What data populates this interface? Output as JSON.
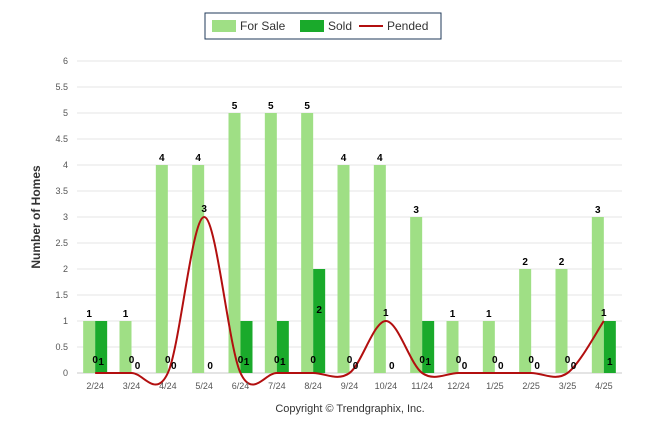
{
  "chart_data": {
    "type": "bar",
    "title": "",
    "xlabel": "",
    "ylabel": "Number of Homes",
    "ylim": [
      0,
      6
    ],
    "yticks": [
      "0",
      "0.5",
      "1",
      "1.5",
      "2",
      "2.5",
      "3",
      "3.5",
      "4",
      "4.5",
      "5",
      "5.5",
      "6"
    ],
    "categories": [
      "2/24",
      "3/24",
      "4/24",
      "5/24",
      "6/24",
      "7/24",
      "8/24",
      "9/24",
      "10/24",
      "11/24",
      "12/24",
      "1/25",
      "2/25",
      "3/25",
      "4/25"
    ],
    "grid": true,
    "legend_position": "top-center",
    "series": [
      {
        "name": "For Sale",
        "kind": "bar",
        "color": "#9fdf85",
        "values": [
          1,
          1,
          4,
          4,
          5,
          5,
          5,
          4,
          4,
          3,
          1,
          1,
          2,
          2,
          3
        ]
      },
      {
        "name": "Sold",
        "kind": "bar",
        "color": "#1aaa2b",
        "values": [
          1,
          0,
          0,
          0,
          1,
          1,
          2,
          0,
          0,
          1,
          0,
          0,
          0,
          0,
          1
        ]
      },
      {
        "name": "Pended",
        "kind": "line",
        "color": "#b20f0f",
        "values": [
          0,
          0,
          0,
          3,
          0,
          0,
          0,
          0,
          1,
          0,
          0,
          0,
          0,
          0,
          1
        ]
      }
    ]
  },
  "footer": {
    "copyright": "Copyright © Trendgraphix, Inc."
  }
}
